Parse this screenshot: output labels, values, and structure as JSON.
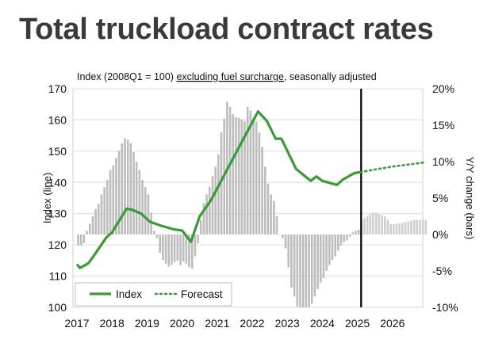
{
  "chart_data": {
    "type": "bar+line",
    "title": "Total truckload contract rates",
    "subtitle": {
      "prefix": "Index (2008Q1 = 100) ",
      "underlined": "excluding fuel surcharge",
      "suffix": ", seasonally adjusted"
    },
    "ylabel_left": "Index (line)",
    "ylabel_right": "Y/Y change (bars)",
    "ylim_left": [
      100,
      170
    ],
    "yticks_left": [
      "100",
      "110",
      "120",
      "130",
      "140",
      "150",
      "160",
      "170"
    ],
    "ylim_right": [
      -10,
      20
    ],
    "yticks_right": [
      "-10%",
      "-5%",
      "0%",
      "5%",
      "10%",
      "15%",
      "20%"
    ],
    "xticks": [
      "2017",
      "2018",
      "2019",
      "2020",
      "2021",
      "2022",
      "2023",
      "2024",
      "2025",
      "2026"
    ],
    "grid": "horizontal",
    "legend": {
      "placement": "bottom-left",
      "entries": [
        "Index",
        "Forecast"
      ]
    },
    "forecast_start": "2025-02",
    "colors": {
      "line": "#3a9a3a",
      "bars": "#bdbdbd",
      "forecast_bars": "#cfcfcf",
      "divider": "#000000"
    },
    "bars_monthly_start": "2017-01",
    "bars_yoy_pct": [
      -1.5,
      -1.5,
      -1.2,
      0.5,
      1.5,
      2.5,
      3.5,
      4.2,
      5.5,
      6.5,
      7.5,
      8.8,
      9.5,
      10.5,
      11.5,
      12.5,
      13.2,
      13.0,
      12.5,
      11.3,
      10.0,
      8.8,
      7.5,
      6.5,
      5.5,
      3.0,
      0.5,
      -0.5,
      -2.5,
      -3.5,
      -4.0,
      -4.4,
      -4.2,
      -3.8,
      -3.6,
      -4.2,
      -3.7,
      -4.0,
      -4.5,
      -4.7,
      -3.0,
      -1.2,
      2.0,
      4.3,
      5.5,
      6.5,
      8.0,
      9.3,
      11.0,
      14.0,
      15.9,
      18.2,
      17.5,
      16.5,
      16.1,
      16.0,
      15.8,
      15.5,
      17.5,
      17.0,
      16.0,
      15.5,
      14.0,
      12.0,
      9.3,
      7.0,
      5.5,
      4.6,
      2.5,
      0.0,
      -0.5,
      -1.9,
      -4.5,
      -7.3,
      -8.5,
      -9.9,
      -10.0,
      -10.0,
      -10.0,
      -10.0,
      -9.5,
      -8.5,
      -7.5,
      -6.6,
      -6.0,
      -5.0,
      -4.2,
      -3.5,
      -3.0,
      -2.2,
      -1.5,
      -1.0,
      -0.8,
      -0.3,
      0.3,
      0.5,
      0.65,
      1.9,
      2.2,
      2.5,
      2.8,
      3.0,
      3.0,
      2.8,
      2.6,
      2.5,
      2.0,
      1.4,
      1.4,
      1.5,
      1.5,
      1.6,
      1.7,
      1.8,
      1.9,
      2.0,
      2.0,
      2.0,
      2.0,
      2.0
    ],
    "index_series": [
      [
        "2017-01",
        113.8
      ],
      [
        "2017-02",
        112.6
      ],
      [
        "2017-04",
        113.6
      ],
      [
        "2017-05",
        114.2
      ],
      [
        "2017-07",
        116.8
      ],
      [
        "2017-11",
        122.3
      ],
      [
        "2018-01",
        124.0
      ],
      [
        "2018-06",
        131.6
      ],
      [
        "2018-08",
        131.2
      ],
      [
        "2018-11",
        130.0
      ],
      [
        "2019-02",
        127.4
      ],
      [
        "2019-06",
        126.1
      ],
      [
        "2019-10",
        125.0
      ],
      [
        "2020-01",
        124.6
      ],
      [
        "2020-04",
        121.0
      ],
      [
        "2020-07",
        129.1
      ],
      [
        "2020-11",
        134.5
      ],
      [
        "2021-04",
        143.4
      ],
      [
        "2021-10",
        154.0
      ],
      [
        "2022-03",
        162.7
      ],
      [
        "2022-06",
        159.7
      ],
      [
        "2022-09",
        154.0
      ],
      [
        "2022-11",
        154.0
      ],
      [
        "2023-04",
        144.3
      ],
      [
        "2023-09",
        140.5
      ],
      [
        "2023-11",
        141.9
      ],
      [
        "2024-01",
        140.5
      ],
      [
        "2024-06",
        139.2
      ],
      [
        "2024-08",
        140.9
      ],
      [
        "2024-12",
        143.0
      ],
      [
        "2025-02",
        143.3
      ]
    ],
    "forecast_series": [
      [
        "2025-02",
        143.3
      ],
      [
        "2025-08",
        144.3
      ],
      [
        "2026-02",
        145.2
      ],
      [
        "2026-12",
        146.4
      ]
    ]
  }
}
